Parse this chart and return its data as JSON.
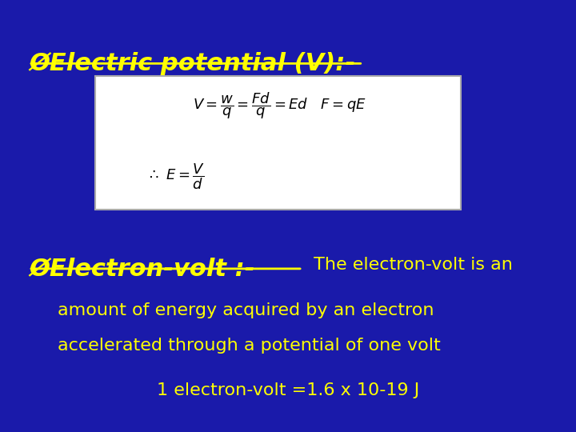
{
  "bg_color": "#1a1aaa",
  "yellow_color": "#ffff00",
  "white_color": "#ffffff",
  "title1": "ØElectric potential (V):-",
  "title2_bold": "ØElectron-volt :-",
  "title2_normal": " The electron-volt is an",
  "line2": "amount of energy acquired by an electron",
  "line3": "accelerated through a potential of one volt",
  "line4": "1 electron-volt =1.6 x 10-19 J",
  "formula1": "$V = \\dfrac{w}{q} = \\dfrac{Fd}{q} = Ed\\quad F = qE$",
  "formula2": "$\\therefore\\ E = \\dfrac{V}{d}$"
}
